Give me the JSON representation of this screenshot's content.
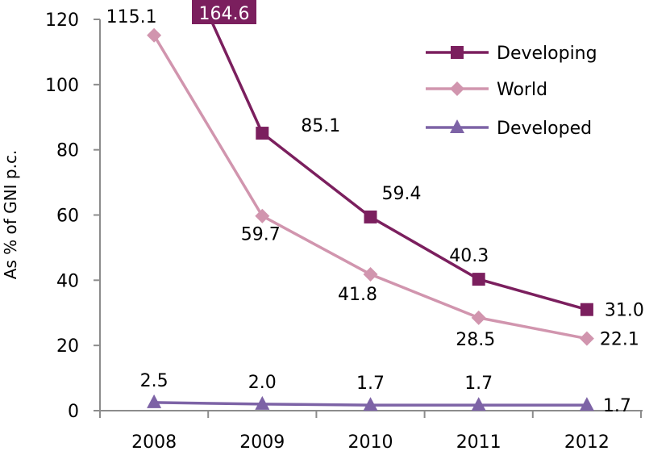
{
  "chart_data": {
    "type": "line",
    "title": "",
    "xlabel": "",
    "ylabel": "As % of GNI p.c.",
    "ylim": [
      0,
      120
    ],
    "yticks": [
      "0",
      "20",
      "40",
      "60",
      "80",
      "100",
      "120"
    ],
    "ytick_values": [
      0,
      20,
      40,
      60,
      80,
      100,
      120
    ],
    "categories": [
      "2008",
      "2009",
      "2010",
      "2011",
      "2012"
    ],
    "grid": false,
    "legend_position": "top-right",
    "series": [
      {
        "name": "Developing",
        "color": "#7b1f5e",
        "marker": "square",
        "values": [
          164.6,
          85.1,
          59.4,
          40.3,
          31.0
        ],
        "labels": [
          "164.6",
          "85.1",
          "59.4",
          "40.3",
          "31.0"
        ],
        "offscale_note": "2008 value exceeds axis maximum; shown in highlighted callout box"
      },
      {
        "name": "World",
        "color": "#d195ae",
        "marker": "diamond",
        "values": [
          115.1,
          59.7,
          41.8,
          28.5,
          22.1
        ],
        "labels": [
          "115.1",
          "59.7",
          "41.8",
          "28.5",
          "22.1"
        ]
      },
      {
        "name": "Developed",
        "color": "#7d63a6",
        "marker": "triangle",
        "values": [
          2.5,
          2.0,
          1.7,
          1.7,
          1.7
        ],
        "labels": [
          "2.5",
          "2.0",
          "1.7",
          "1.7",
          "1.7"
        ]
      }
    ],
    "callout": {
      "text": "164.6",
      "background": "#7b1f5e",
      "text_color": "#ffffff"
    }
  }
}
